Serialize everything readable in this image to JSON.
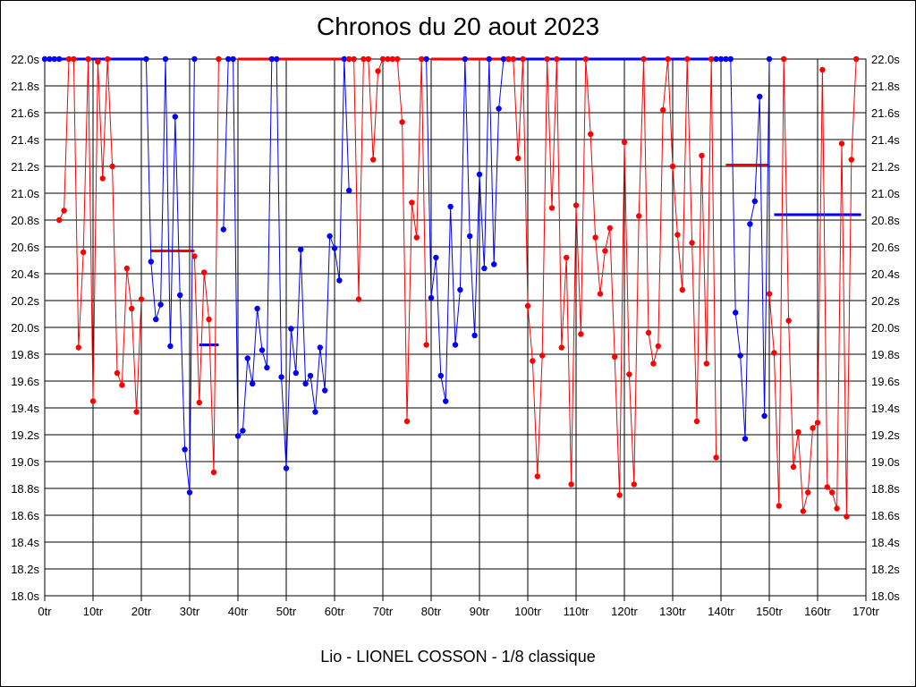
{
  "chart_data": {
    "type": "line",
    "title": "Chronos du 20 aout 2023",
    "subtitle": "Lio - LIONEL COSSON - 1/8 classique",
    "xlabel": "",
    "ylabel": "",
    "xlim": [
      0,
      170
    ],
    "ylim": [
      18.0,
      22.0
    ],
    "x_ticks": [
      0,
      10,
      20,
      30,
      40,
      50,
      60,
      70,
      80,
      90,
      100,
      110,
      120,
      130,
      140,
      150,
      160,
      170
    ],
    "x_tick_labels": [
      "0tr",
      "10tr",
      "20tr",
      "30tr",
      "40tr",
      "50tr",
      "60tr",
      "70tr",
      "80tr",
      "90tr",
      "100tr",
      "110tr",
      "120tr",
      "130tr",
      "140tr",
      "150tr",
      "160tr",
      "170tr"
    ],
    "y_ticks": [
      18.0,
      18.2,
      18.4,
      18.6,
      18.8,
      19.0,
      19.2,
      19.4,
      19.6,
      19.8,
      20.0,
      20.2,
      20.4,
      20.6,
      20.8,
      21.0,
      21.2,
      21.4,
      21.6,
      21.8,
      22.0
    ],
    "y_tick_labels": [
      "18.0s",
      "18.2s",
      "18.4s",
      "18.6s",
      "18.8s",
      "19.0s",
      "19.2s",
      "19.4s",
      "19.6s",
      "19.8s",
      "20.0s",
      "20.2s",
      "20.4s",
      "20.6s",
      "20.8s",
      "21.0s",
      "21.2s",
      "21.4s",
      "21.6s",
      "21.8s",
      "22.0s"
    ],
    "grid": true,
    "series": [
      {
        "name": "blue-1",
        "color": "#0000ff",
        "x": [
          0,
          1,
          2,
          3
        ],
        "y": [
          22.0,
          22.0,
          22.0,
          22.0
        ]
      },
      {
        "name": "red-1",
        "color": "#ff0000",
        "x": [
          3,
          4,
          5,
          6,
          7,
          8,
          9,
          10,
          11,
          12,
          13,
          14,
          15,
          16,
          17,
          18,
          19,
          20
        ],
        "y": [
          20.8,
          20.87,
          22.0,
          22.0,
          19.85,
          20.56,
          22.0,
          19.45,
          21.98,
          21.11,
          22.0,
          21.2,
          19.66,
          19.57,
          20.44,
          20.14,
          19.37,
          20.21
        ]
      },
      {
        "name": "blue-2",
        "color": "#0000ff",
        "x": [
          21,
          22,
          23,
          24,
          25,
          26,
          27,
          28,
          29,
          30,
          31
        ],
        "y": [
          22.0,
          20.49,
          20.06,
          20.17,
          22.0,
          19.86,
          21.57,
          20.24,
          19.09,
          18.77,
          22.0
        ]
      },
      {
        "name": "red-2",
        "color": "#ff0000",
        "x": [
          31,
          32,
          33,
          34,
          35,
          36
        ],
        "y": [
          20.53,
          19.44,
          20.41,
          20.06,
          18.92,
          22.0
        ]
      },
      {
        "name": "blue-3",
        "color": "#0000ff",
        "x": [
          37,
          38,
          39,
          40,
          41,
          42,
          43,
          44,
          45,
          46,
          47,
          48,
          49,
          50,
          51,
          52,
          53,
          54,
          55,
          56,
          57,
          58,
          59,
          60,
          61,
          62,
          63
        ],
        "y": [
          20.73,
          22.0,
          22.0,
          19.19,
          19.23,
          19.77,
          19.58,
          20.14,
          19.83,
          19.7,
          22.0,
          22.0,
          19.63,
          18.95,
          19.99,
          19.66,
          20.58,
          19.58,
          19.64,
          19.37,
          19.85,
          19.53,
          20.68,
          20.59,
          20.35,
          22.0,
          21.02
        ]
      },
      {
        "name": "red-3",
        "color": "#ff0000",
        "x": [
          63,
          64,
          65,
          66,
          67,
          68,
          69,
          70,
          71,
          72,
          73,
          74,
          75,
          76,
          77,
          78,
          79
        ],
        "y": [
          22.0,
          22.0,
          20.21,
          22.0,
          22.0,
          21.25,
          21.91,
          22.0,
          22.0,
          22.0,
          22.0,
          21.53,
          19.3,
          20.93,
          20.67,
          22.0,
          19.87
        ]
      },
      {
        "name": "blue-4",
        "color": "#0000ff",
        "x": [
          79,
          80,
          81,
          82,
          83,
          84,
          85,
          86,
          87,
          88,
          89,
          90,
          91,
          92,
          93,
          94,
          95,
          96
        ],
        "y": [
          22.0,
          20.22,
          20.52,
          19.64,
          19.45,
          20.9,
          19.87,
          20.28,
          22.0,
          20.68,
          19.94,
          21.14,
          20.44,
          22.0,
          20.47,
          21.63,
          22.0,
          22.0
        ]
      },
      {
        "name": "red-4",
        "color": "#ff0000",
        "x": [
          96,
          97,
          98,
          99,
          100,
          101,
          102,
          103,
          104,
          105,
          106,
          107,
          108,
          109,
          110,
          111,
          112,
          113,
          114,
          115,
          116,
          117,
          118,
          119,
          120,
          121,
          122,
          123,
          124,
          125,
          126,
          127,
          128,
          129,
          130,
          131,
          132,
          133,
          134,
          135,
          136,
          137,
          138,
          139
        ],
        "y": [
          22.0,
          22.0,
          21.26,
          22.0,
          20.16,
          19.75,
          18.89,
          19.79,
          22.0,
          20.89,
          22.0,
          19.85,
          20.52,
          18.83,
          20.91,
          19.95,
          22.0,
          21.44,
          20.67,
          20.25,
          20.57,
          20.74,
          19.78,
          18.75,
          21.38,
          19.65,
          18.83,
          20.83,
          22.0,
          19.96,
          19.73,
          19.86,
          21.62,
          22.0,
          21.2,
          20.69,
          20.28,
          22.0,
          20.63,
          19.3,
          21.28,
          19.73,
          22.0,
          19.03
        ]
      },
      {
        "name": "blue-5",
        "color": "#0000ff",
        "x": [
          139,
          140,
          141,
          142,
          143,
          144,
          145,
          146,
          147,
          148,
          149,
          150
        ],
        "y": [
          22.0,
          22.0,
          22.0,
          22.0,
          20.11,
          19.79,
          19.17,
          20.77,
          20.94,
          21.72,
          19.34,
          22.0
        ]
      },
      {
        "name": "red-5",
        "color": "#ff0000",
        "x": [
          150,
          151,
          152,
          153,
          154,
          155,
          156,
          157,
          158,
          159,
          160,
          161,
          162,
          163,
          164,
          165,
          166,
          167,
          168
        ],
        "y": [
          20.25,
          19.81,
          18.67,
          22.0,
          20.05,
          18.96,
          19.22,
          18.63,
          18.77,
          19.25,
          19.29,
          21.92,
          18.81,
          18.77,
          18.65,
          21.37,
          18.59,
          21.25,
          22.0
        ]
      }
    ],
    "reference_lines": [
      {
        "name": "red-segment-a",
        "color": "#ff0000",
        "x": [
          22,
          31
        ],
        "y": 20.57
      },
      {
        "name": "blue-segment-a",
        "color": "#0000ff",
        "x": [
          32,
          36
        ],
        "y": 19.87
      },
      {
        "name": "blue-top-a",
        "color": "#0000ff",
        "x": [
          3,
          21
        ],
        "y": 22.0
      },
      {
        "name": "red-top-a",
        "color": "#ff0000",
        "x": [
          40,
          62
        ],
        "y": 22.0
      },
      {
        "name": "red-top-b",
        "color": "#ff0000",
        "x": [
          80,
          96
        ],
        "y": 22.0
      },
      {
        "name": "blue-top-b",
        "color": "#0000ff",
        "x": [
          97,
          139
        ],
        "y": 22.0
      },
      {
        "name": "red-segment-b",
        "color": "#ff0000",
        "x": [
          141,
          150
        ],
        "y": 21.21
      },
      {
        "name": "blue-segment-b",
        "color": "#0000ff",
        "x": [
          151,
          169
        ],
        "y": 20.84
      }
    ]
  }
}
